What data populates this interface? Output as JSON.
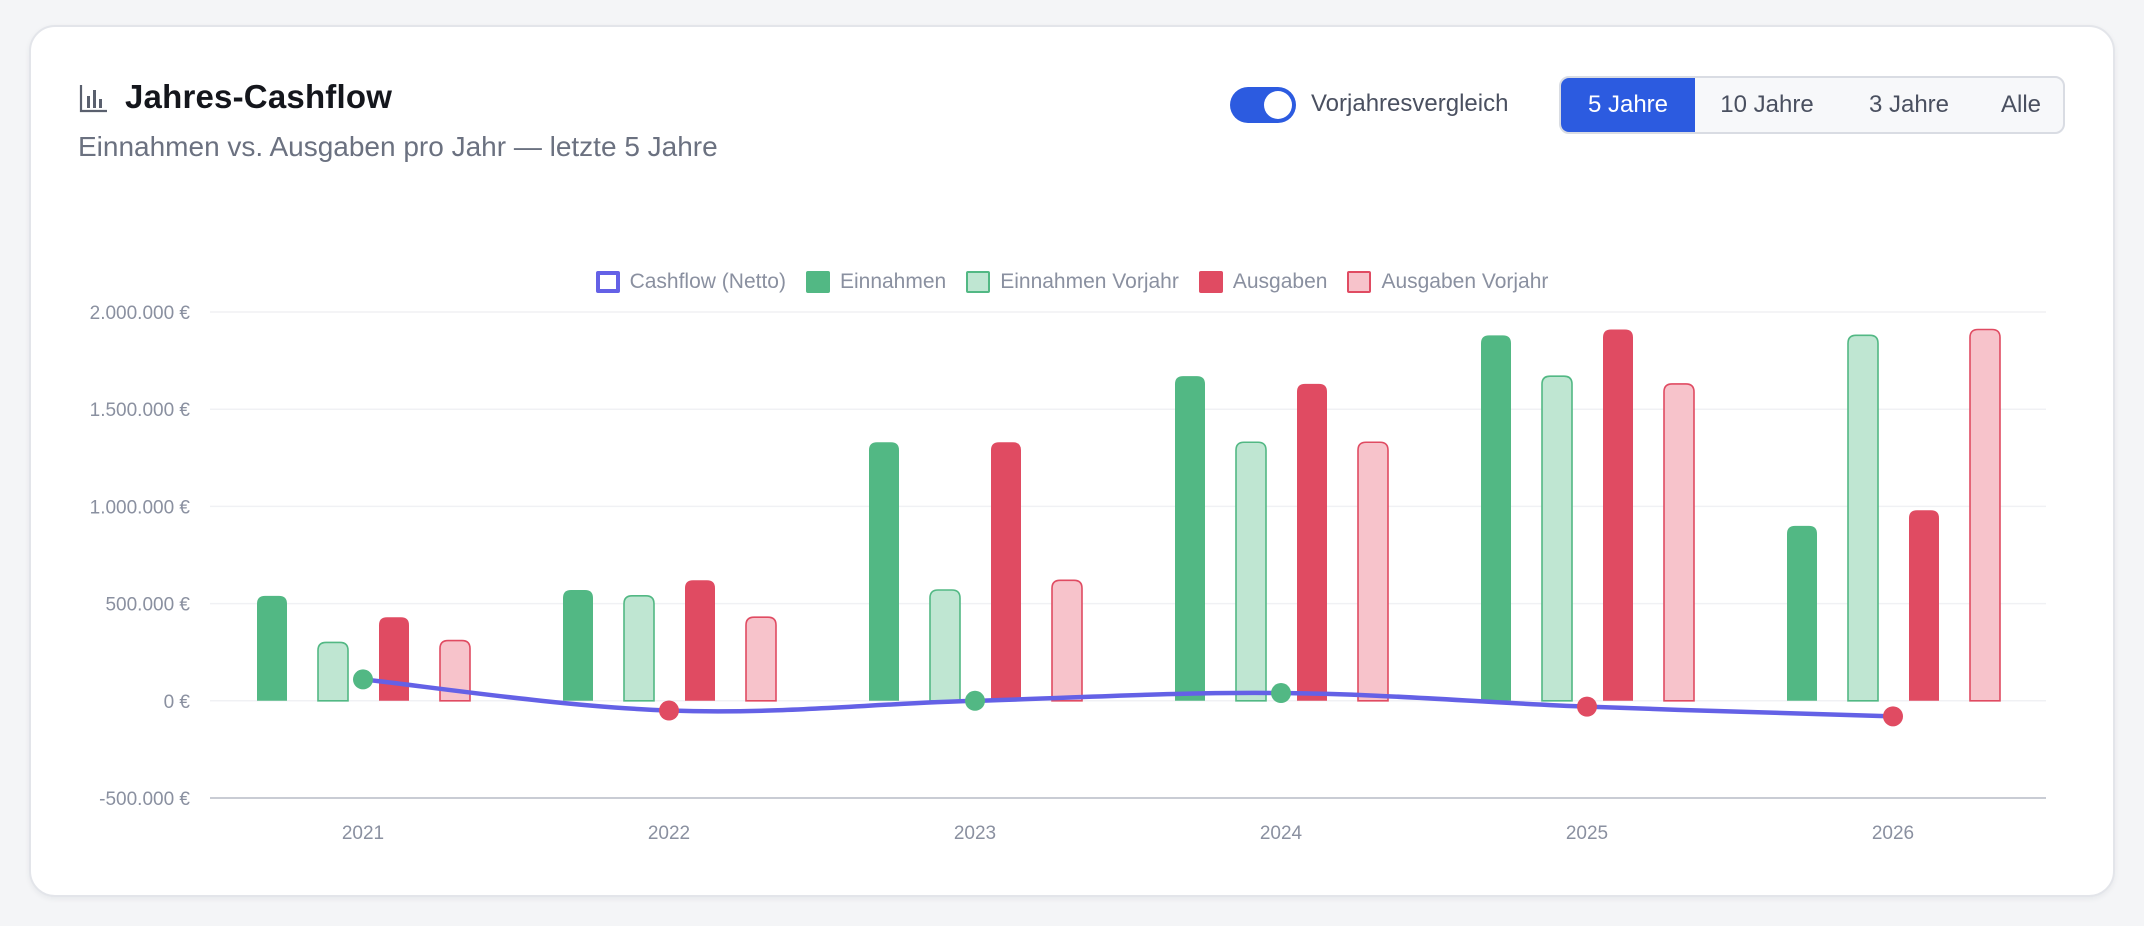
{
  "header": {
    "title": "Jahres-Cashflow",
    "subtitle": "Einnahmen vs. Ausgaben pro Jahr — letzte 5 Jahre",
    "icon": "bar-chart-icon"
  },
  "controls": {
    "compare_label": "Vorjahresvergleich",
    "compare_on": true,
    "ranges": [
      "5 Jahre",
      "10 Jahre",
      "3 Jahre",
      "Alle"
    ],
    "active_range": "5 Jahre"
  },
  "colors": {
    "accent": "#2c5be0",
    "income": "#52b884",
    "income_prev_fill": "#bfe6d2",
    "expense": "#e04b62",
    "expense_prev_fill": "#f7c3cb",
    "cashflow_line": "#6461e6"
  },
  "chart_data": {
    "type": "bar",
    "categories": [
      "2021",
      "2022",
      "2023",
      "2024",
      "2025",
      "2026"
    ],
    "ylim": [
      -500000,
      2000000
    ],
    "yticks": [
      -500000,
      0,
      500000,
      1000000,
      1500000,
      2000000
    ],
    "ytick_labels": [
      "-500.000 €",
      "0 €",
      "500.000 €",
      "1.000.000 €",
      "1.500.000 €",
      "2.000.000 €"
    ],
    "grid": true,
    "legend_position": "top-center",
    "legend": [
      "Cashflow (Netto)",
      "Einnahmen",
      "Einnahmen Vorjahr",
      "Ausgaben",
      "Ausgaben Vorjahr"
    ],
    "series": [
      {
        "name": "Einnahmen",
        "type": "bar",
        "values": [
          540000,
          570000,
          1330000,
          1670000,
          1880000,
          900000
        ]
      },
      {
        "name": "Einnahmen Vorjahr",
        "type": "bar",
        "values": [
          300000,
          540000,
          570000,
          1330000,
          1670000,
          1880000
        ]
      },
      {
        "name": "Ausgaben",
        "type": "bar",
        "values": [
          430000,
          620000,
          1330000,
          1630000,
          1910000,
          980000
        ]
      },
      {
        "name": "Ausgaben Vorjahr",
        "type": "bar",
        "values": [
          310000,
          430000,
          620000,
          1330000,
          1630000,
          1910000
        ]
      },
      {
        "name": "Cashflow (Netto)",
        "type": "line",
        "values": [
          110000,
          -50000,
          0,
          40000,
          -30000,
          -80000
        ]
      }
    ]
  }
}
